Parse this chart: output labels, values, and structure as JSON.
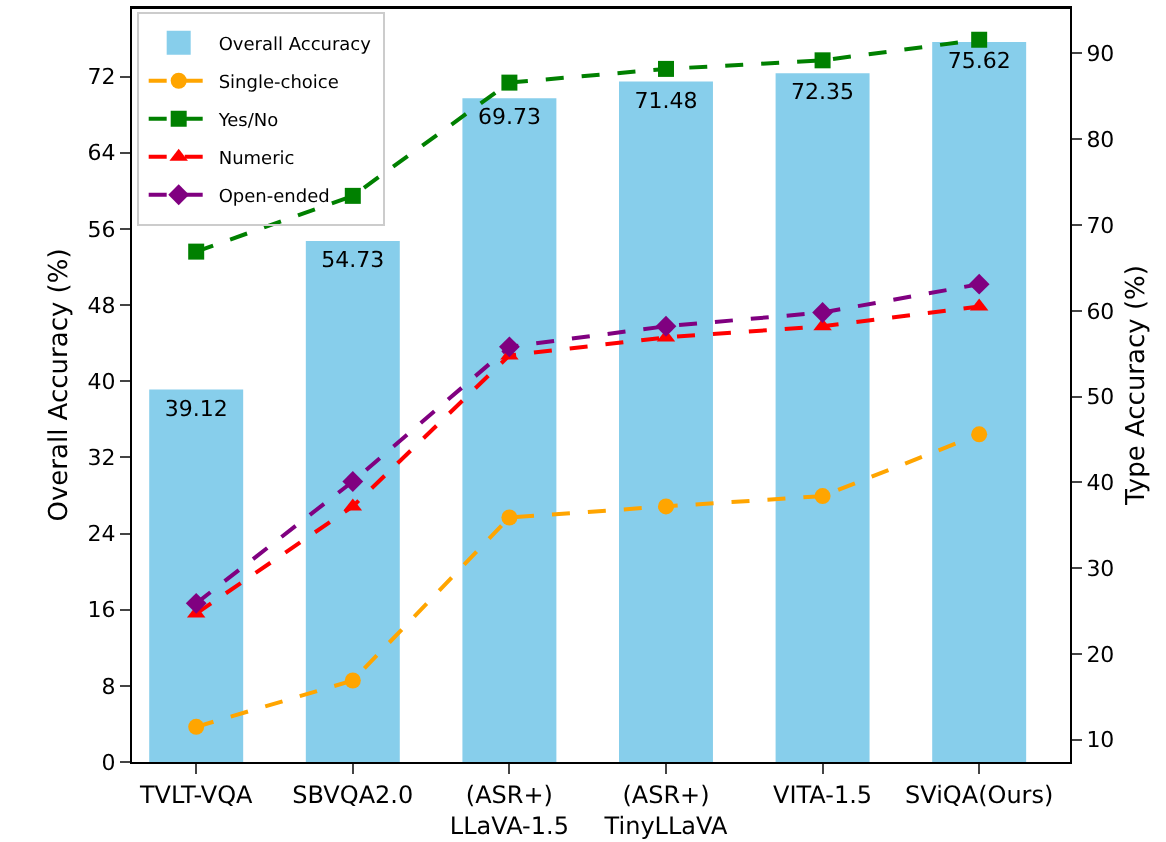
{
  "chart_data": {
    "type": "bar",
    "categories": [
      "TVLT-VQA",
      "SBVQA2.0",
      "(ASR+)\nLLaVA-1.5",
      "(ASR+)\nTinyLLaVA",
      "VITA-1.5",
      "SViQA(Ours)"
    ],
    "ylabel": "Overall Accuracy (%)",
    "y2label": "Type Accuracy (%)",
    "ylim": [
      0,
      79.2
    ],
    "yticks": [
      0,
      8,
      16,
      24,
      32,
      40,
      48,
      56,
      64,
      72
    ],
    "y2lim": [
      7.4,
      95.3
    ],
    "y2ticks": [
      10,
      20,
      30,
      40,
      50,
      60,
      70,
      80,
      90
    ],
    "legend": "top left",
    "grid": false,
    "line_style": "dashed",
    "series": [
      {
        "name": "Overall Accuracy",
        "type": "bar",
        "color": "#87ceeb",
        "values": [
          39.12,
          54.73,
          69.73,
          71.48,
          72.35,
          75.62
        ],
        "data_labels": true
      },
      {
        "name": "Single-choice",
        "type": "line",
        "axis": "y2",
        "marker": "circle",
        "color": "#ffa500",
        "values": [
          11.5,
          16.9,
          35.9,
          37.2,
          38.4,
          45.6
        ]
      },
      {
        "name": "Yes/No",
        "type": "line",
        "axis": "y2",
        "marker": "square",
        "color": "#008000",
        "values": [
          66.9,
          73.4,
          86.6,
          88.2,
          89.2,
          91.6
        ]
      },
      {
        "name": "Numeric",
        "type": "line",
        "axis": "y2",
        "marker": "triangle",
        "color": "#ff0000",
        "values": [
          24.7,
          37.2,
          54.8,
          56.9,
          58.2,
          60.5
        ]
      },
      {
        "name": "Open-ended",
        "type": "line",
        "axis": "y2",
        "marker": "diamond",
        "color": "#800080",
        "values": [
          25.9,
          40.1,
          55.8,
          58.2,
          59.8,
          63.1
        ]
      }
    ]
  }
}
